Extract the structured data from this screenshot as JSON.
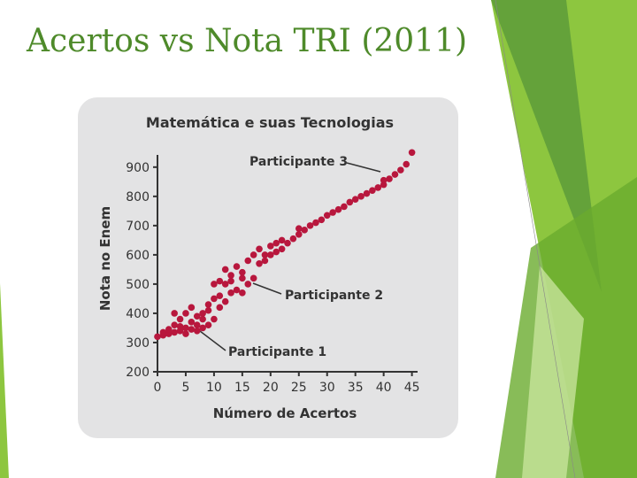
{
  "slide": {
    "title": "Acertos vs Nota TRI (2011)"
  },
  "chart_data": {
    "type": "scatter",
    "title": "Matemática e suas Tecnologias",
    "x_label": "Número de Acertos",
    "y_label": "Nota no Enem",
    "color": "#b8173d",
    "xlim": [
      0,
      46
    ],
    "ylim": [
      200,
      960
    ],
    "xticks": [
      0,
      5,
      10,
      15,
      20,
      25,
      30,
      35,
      40,
      45
    ],
    "yticks": [
      200,
      300,
      400,
      500,
      600,
      700,
      800,
      900
    ],
    "annotations": [
      "Participante 1",
      "Participante 2",
      "Participante 3"
    ],
    "x": [
      0,
      1,
      1,
      2,
      2,
      3,
      3,
      3,
      4,
      4,
      4,
      5,
      5,
      5,
      6,
      6,
      6,
      7,
      7,
      7,
      8,
      8,
      8,
      9,
      9,
      9,
      10,
      10,
      10,
      11,
      11,
      11,
      12,
      12,
      12,
      13,
      13,
      13,
      14,
      14,
      15,
      15,
      15,
      16,
      16,
      17,
      17,
      18,
      18,
      19,
      19,
      20,
      20,
      21,
      21,
      22,
      22,
      23,
      24,
      25,
      25,
      26,
      27,
      28,
      29,
      30,
      31,
      32,
      33,
      34,
      35,
      36,
      37,
      38,
      39,
      40,
      40,
      41,
      42,
      43,
      44,
      45
    ],
    "y": [
      320,
      325,
      335,
      330,
      345,
      335,
      360,
      400,
      340,
      355,
      380,
      330,
      350,
      400,
      345,
      370,
      420,
      340,
      360,
      390,
      350,
      380,
      400,
      360,
      410,
      430,
      380,
      450,
      500,
      420,
      460,
      510,
      440,
      500,
      550,
      470,
      510,
      530,
      480,
      560,
      470,
      520,
      540,
      500,
      580,
      520,
      600,
      570,
      620,
      580,
      600,
      600,
      630,
      610,
      640,
      620,
      650,
      640,
      655,
      670,
      690,
      685,
      700,
      710,
      720,
      735,
      745,
      755,
      765,
      780,
      790,
      800,
      810,
      820,
      830,
      840,
      855,
      860,
      875,
      890,
      910,
      950
    ]
  }
}
